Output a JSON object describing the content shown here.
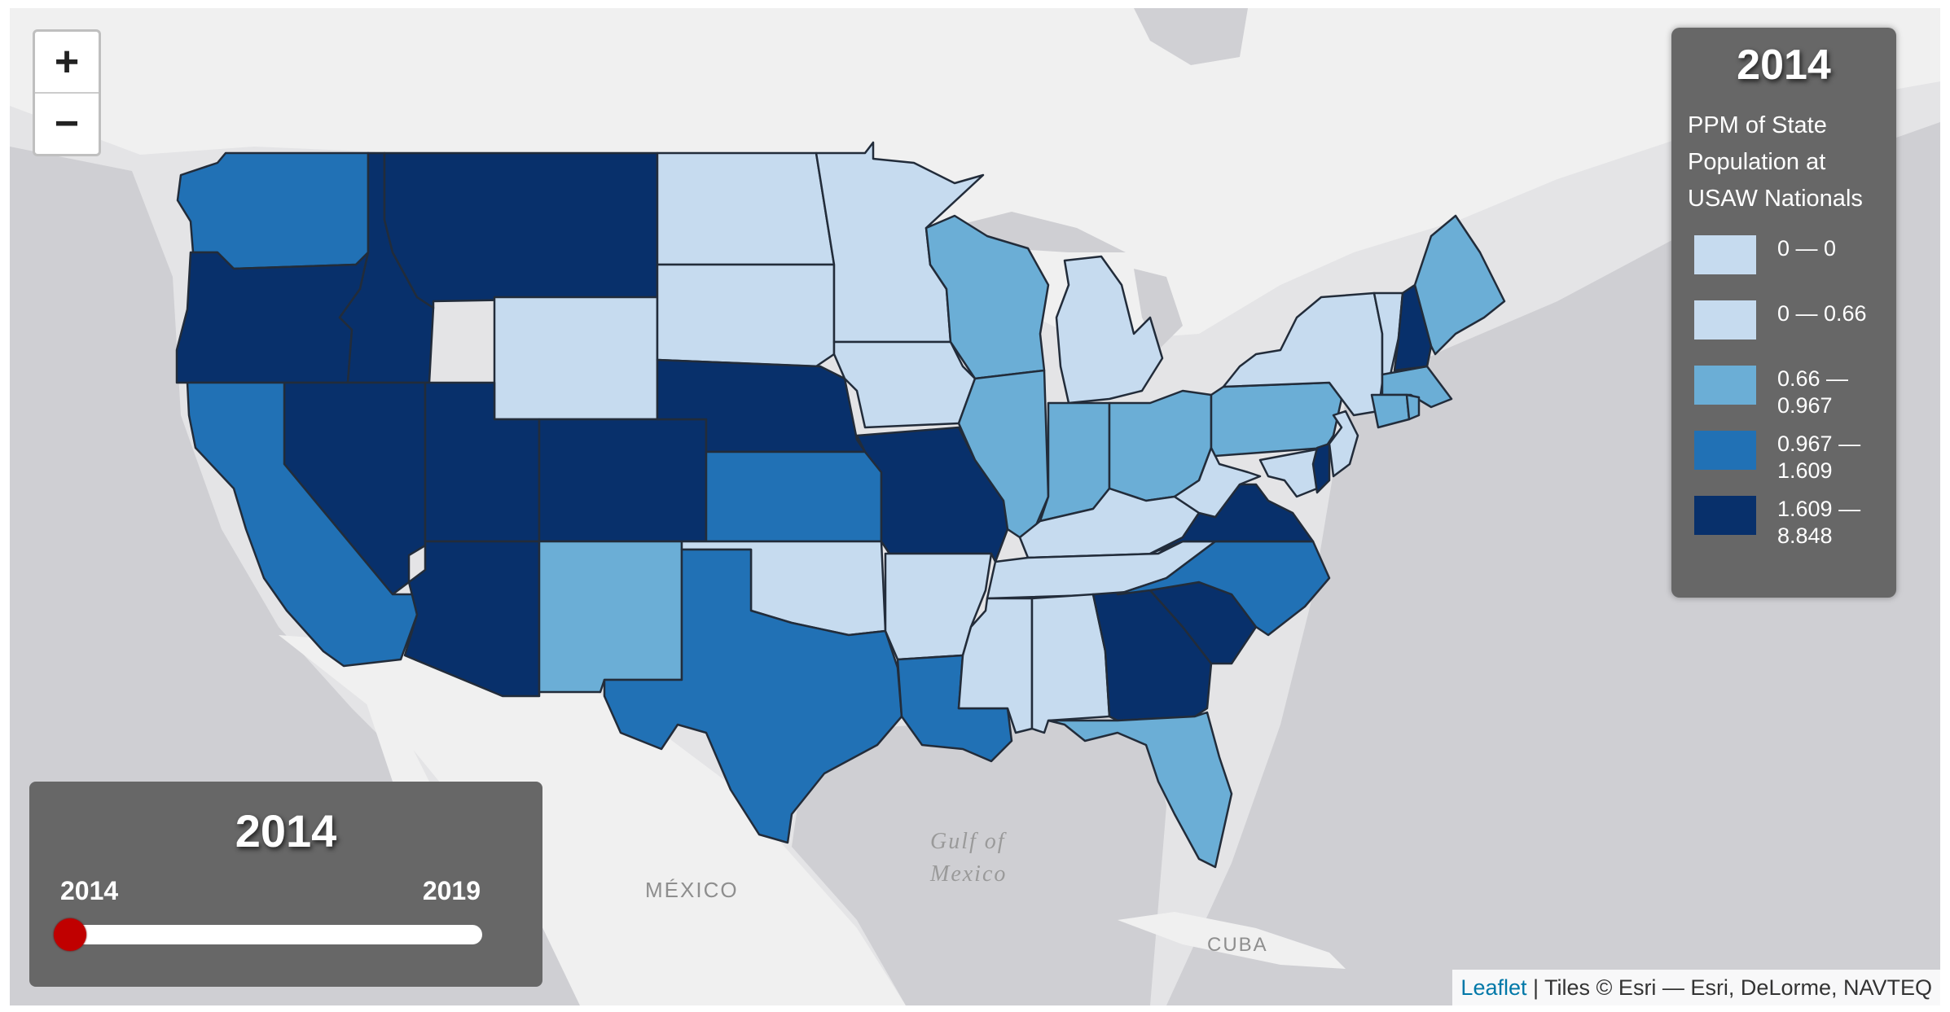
{
  "zoom": {
    "in_label": "+",
    "out_label": "−"
  },
  "basemap_labels": {
    "mexico": "MÉXICO",
    "gulf_line1": "Gulf of",
    "gulf_line2": "Mexico",
    "cuba": "CUBA"
  },
  "legend": {
    "year": "2014",
    "title": "PPM of State Population at USAW Nationals",
    "classes": [
      {
        "label": "0 — 0",
        "color": "#c6dbef"
      },
      {
        "label": "0 — 0.66",
        "color": "#c6dbef"
      },
      {
        "label": "0.66 — 0.967",
        "color": "#6baed6"
      },
      {
        "label": "0.967 — 1.609",
        "color": "#2171b5"
      },
      {
        "label": "1.609 — 8.848",
        "color": "#08306b"
      }
    ]
  },
  "slider": {
    "year": "2014",
    "min": 2014,
    "max": 2019,
    "value": 2014,
    "min_label": "2014",
    "max_label": "2019"
  },
  "attribution": {
    "link": "Leaflet",
    "text": " | Tiles © Esri — Esri, DeLorme, NAVTEQ"
  },
  "states": {
    "WA": 3,
    "OR": 4,
    "CA": 3,
    "NV": 4,
    "ID": 4,
    "MT": 4,
    "WY": 1,
    "UT": 4,
    "CO": 4,
    "AZ": 4,
    "NM": 2,
    "ND": 1,
    "SD": 1,
    "NE": 4,
    "KS": 3,
    "OK": 1,
    "TX": 3,
    "MN": 1,
    "IA": 1,
    "MO": 4,
    "AR": 1,
    "LA": 3,
    "WI": 2,
    "IL": 2,
    "MI": 1,
    "IN": 2,
    "OH": 2,
    "KY": 1,
    "TN": 1,
    "MS": 1,
    "AL": 1,
    "GA": 4,
    "FL": 2,
    "SC": 4,
    "NC": 3,
    "VA": 4,
    "WV": 1,
    "PA": 2,
    "NY": 1,
    "VT": 1,
    "NH": 4,
    "ME": 2,
    "MA": 2,
    "CT": 2,
    "RI": 2,
    "NJ": 1,
    "DE": 4,
    "MD": 1
  }
}
